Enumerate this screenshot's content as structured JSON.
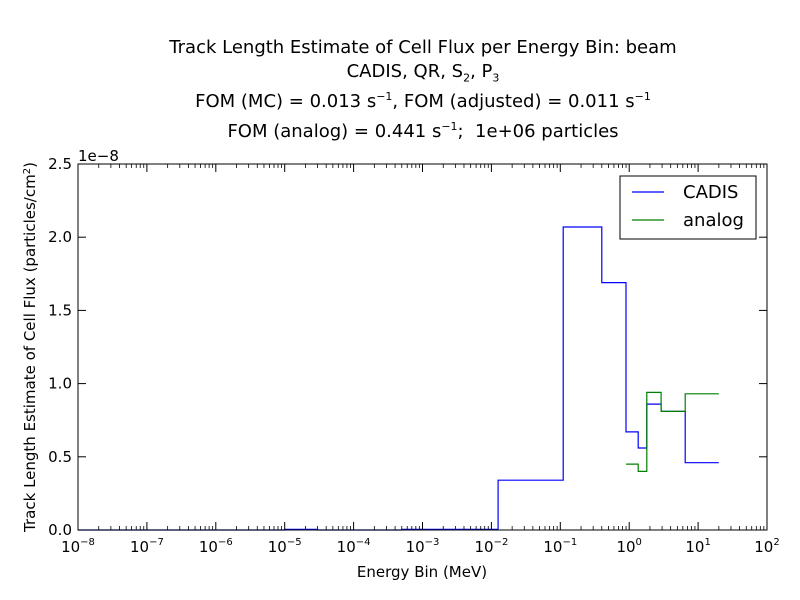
{
  "chart_data": {
    "type": "line",
    "step": true,
    "title_lines": [
      "Track Length Estimate of Cell Flux per Energy Bin: beam",
      "CADIS, QR, S_2, P_3",
      "FOM (MC) = 0.013 s^-1, FOM (adjusted) = 0.011 s^-1",
      "FOM (analog) = 0.441 s^-1;  1e+06 particles"
    ],
    "xlabel": "Energy Bin (MeV)",
    "ylabel": "Track Length Estimate of Cell Flux (particles/cm^2)",
    "y_multiplier": "1e−8",
    "xscale": "log",
    "xlim": [
      1e-08,
      100
    ],
    "ylim": [
      0,
      2.5
    ],
    "x_ticks": [
      {
        "base": "10",
        "exp": "-8"
      },
      {
        "base": "10",
        "exp": "-7"
      },
      {
        "base": "10",
        "exp": "-6"
      },
      {
        "base": "10",
        "exp": "-5"
      },
      {
        "base": "10",
        "exp": "-4"
      },
      {
        "base": "10",
        "exp": "-3"
      },
      {
        "base": "10",
        "exp": "-2"
      },
      {
        "base": "10",
        "exp": "-1"
      },
      {
        "base": "10",
        "exp": "0"
      },
      {
        "base": "10",
        "exp": "1"
      },
      {
        "base": "10",
        "exp": "2"
      }
    ],
    "y_ticks": [
      "0.0",
      "0.5",
      "1.0",
      "1.5",
      "2.0",
      "2.5"
    ],
    "legend_position": "top-right",
    "series": [
      {
        "name": "CADIS",
        "color": "#0000ff",
        "x": [
          1e-08,
          1e-05,
          3e-05,
          0.0005,
          0.0125,
          0.11,
          0.4,
          0.9,
          1.35,
          1.8,
          2.9,
          6.5,
          20
        ],
        "values": [
          0.0,
          0.005,
          0.0,
          0.005,
          0.34,
          2.07,
          1.69,
          0.67,
          0.56,
          0.86,
          0.81,
          0.46,
          0.46
        ]
      },
      {
        "name": "analog",
        "color": "#008000",
        "x": [
          0.9,
          1.35,
          1.8,
          2.9,
          6.5,
          20
        ],
        "values": [
          0.45,
          0.4,
          0.94,
          0.81,
          0.93,
          0.93
        ]
      }
    ]
  }
}
